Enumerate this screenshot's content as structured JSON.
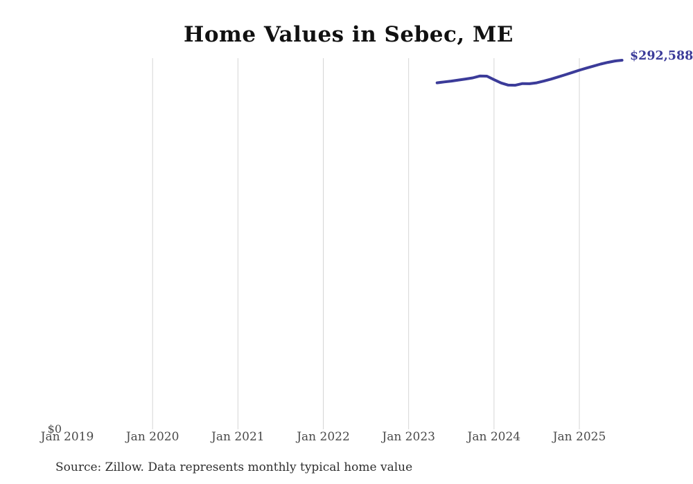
{
  "page": {
    "background": "#ffffff"
  },
  "chart_data": {
    "type": "line",
    "title": "Home Values in Sebec, ME",
    "source_note": "Source: Zillow. Data represents monthly typical home value",
    "end_label": "$292,588",
    "y_zero_label": "$0",
    "ylabel": "",
    "xlabel": "",
    "ylim": [
      0,
      294250
    ],
    "grid": "vertical-only",
    "grid_color": "#d5d5d5",
    "colors": {
      "line": "#3b3b99",
      "title_text": "#111111",
      "axis_text": "#4a4a4a",
      "source_text": "#2e2e2e"
    },
    "xticks": [
      {
        "label": "Jan 2019",
        "date": "2019-01",
        "gridline": false
      },
      {
        "label": "Jan 2020",
        "date": "2020-01",
        "gridline": true
      },
      {
        "label": "Jan 2021",
        "date": "2021-01",
        "gridline": true
      },
      {
        "label": "Jan 2022",
        "date": "2022-01",
        "gridline": true
      },
      {
        "label": "Jan 2023",
        "date": "2023-01",
        "gridline": true
      },
      {
        "label": "Jan 2024",
        "date": "2024-01",
        "gridline": true
      },
      {
        "label": "Jan 2025",
        "date": "2025-01",
        "gridline": true
      }
    ],
    "series": [
      {
        "name": "Monthly typical home value",
        "color": "#3b3b99",
        "points": [
          [
            "2023-05",
            274700
          ],
          [
            "2023-06",
            275400
          ],
          [
            "2023-07",
            276100
          ],
          [
            "2023-08",
            276900
          ],
          [
            "2023-09",
            277700
          ],
          [
            "2023-10",
            278600
          ],
          [
            "2023-11",
            280100
          ],
          [
            "2023-12",
            280000
          ],
          [
            "2024-01",
            277200
          ],
          [
            "2024-02",
            274600
          ],
          [
            "2024-03",
            272900
          ],
          [
            "2024-04",
            272800
          ],
          [
            "2024-05",
            274100
          ],
          [
            "2024-06",
            274000
          ],
          [
            "2024-07",
            274700
          ],
          [
            "2024-08",
            276100
          ],
          [
            "2024-09",
            277600
          ],
          [
            "2024-10",
            279300
          ],
          [
            "2024-11",
            281100
          ],
          [
            "2024-12",
            282900
          ],
          [
            "2025-01",
            284700
          ],
          [
            "2025-02",
            286400
          ],
          [
            "2025-03",
            288000
          ],
          [
            "2025-04",
            289600
          ],
          [
            "2025-05",
            290900
          ],
          [
            "2025-06",
            292000
          ],
          [
            "2025-07",
            292588
          ]
        ]
      }
    ]
  }
}
